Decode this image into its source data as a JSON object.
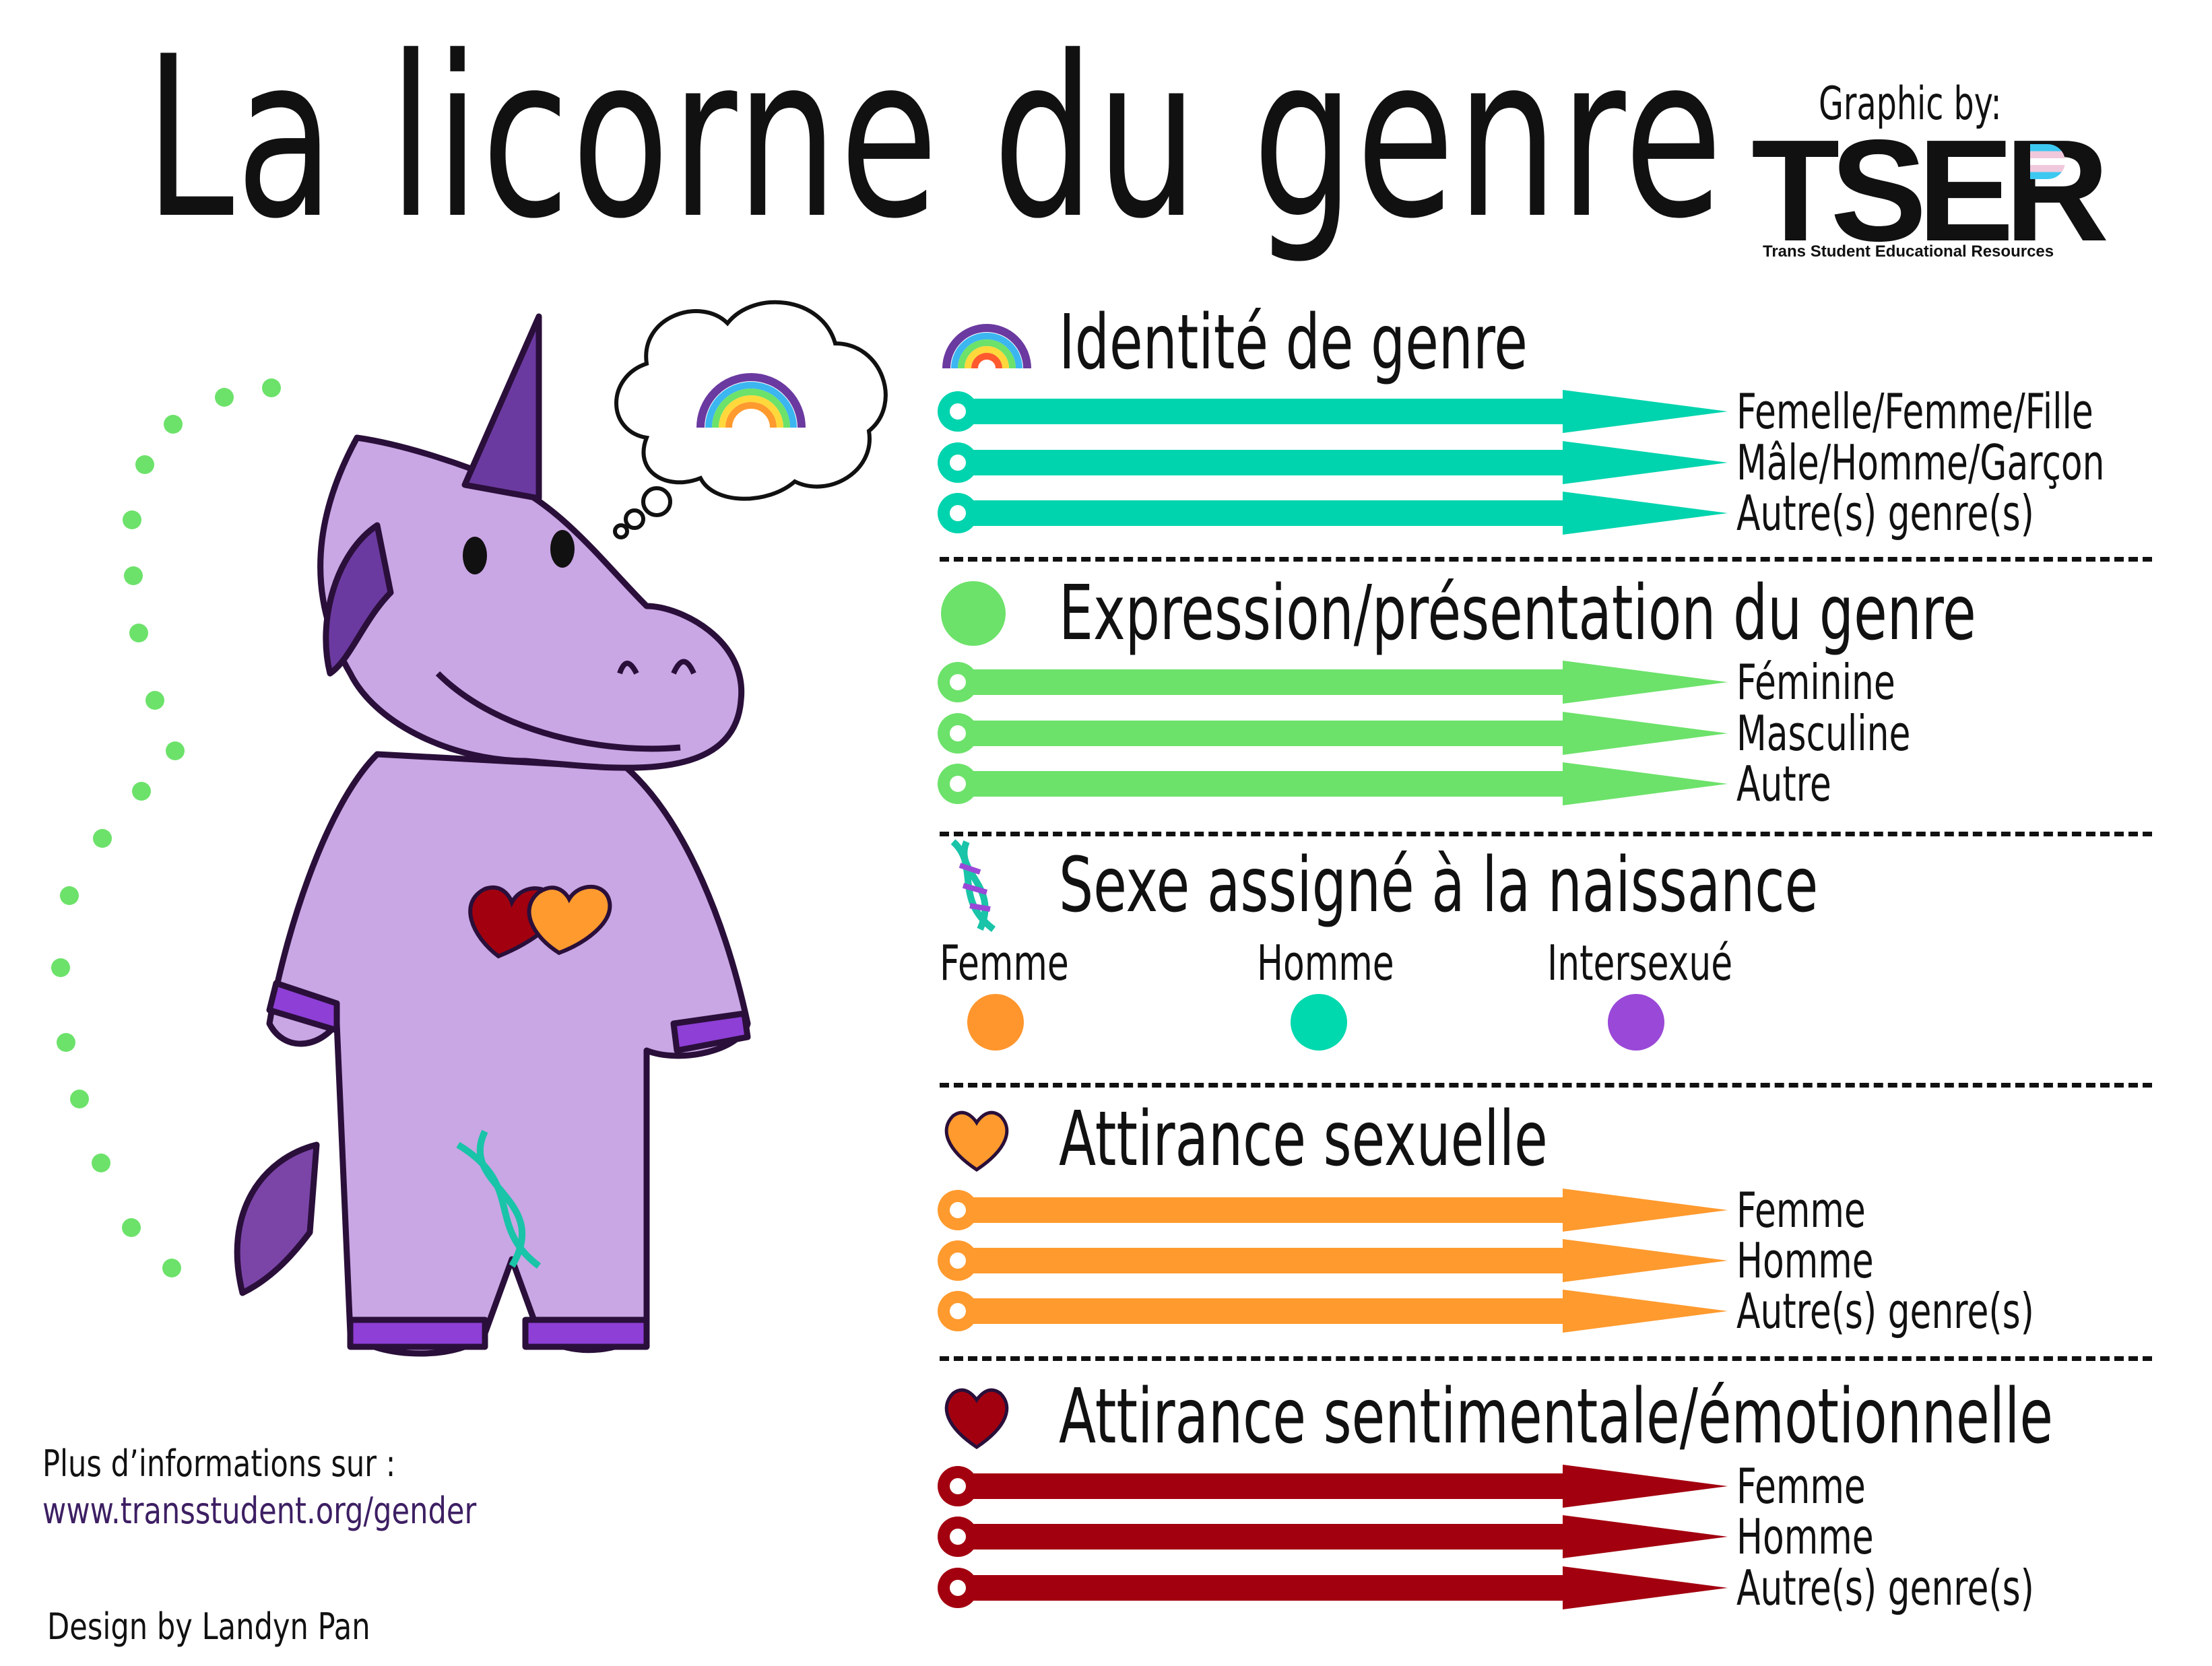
{
  "title": "La licorne du genre",
  "credit": {
    "graphic_by": "Graphic by:",
    "logo_text": "TSER",
    "logo_subtitle": "Trans Student Educational Resources"
  },
  "sections": [
    {
      "title": "Identité de genre",
      "icon": "rainbow-icon",
      "color": "#00d4ae",
      "options": [
        "Femelle/Femme/Fille",
        "Mâle/Homme/Garçon",
        "Autre(s) genre(s)"
      ]
    },
    {
      "title": "Expression/présentation du genre",
      "icon": "green-circle-icon",
      "color": "#6ce26a",
      "options": [
        "Féminine",
        "Masculine",
        "Autre"
      ]
    },
    {
      "title": "Sexe assigné à la naissance",
      "icon": "dna-icon",
      "options": [
        {
          "label": "Femme",
          "color": "#ff962d"
        },
        {
          "label": "Homme",
          "color": "#00d8ae"
        },
        {
          "label": "Intersexué",
          "color": "#9a48d8"
        }
      ]
    },
    {
      "title": "Attirance sexuelle",
      "icon": "orange-heart-icon",
      "color": "#ff9a2e",
      "options": [
        "Femme",
        "Homme",
        "Autre(s) genre(s)"
      ]
    },
    {
      "title": "Attirance sentimentale/émotionnelle",
      "icon": "red-heart-icon",
      "color": "#a3000f",
      "options": [
        "Femme",
        "Homme",
        "Autre(s) genre(s)"
      ]
    }
  ],
  "footer": {
    "more_info": "Plus d’informations sur :",
    "url": "www.transstudent.org/gender",
    "design_by": "Design by Landyn Pan"
  }
}
